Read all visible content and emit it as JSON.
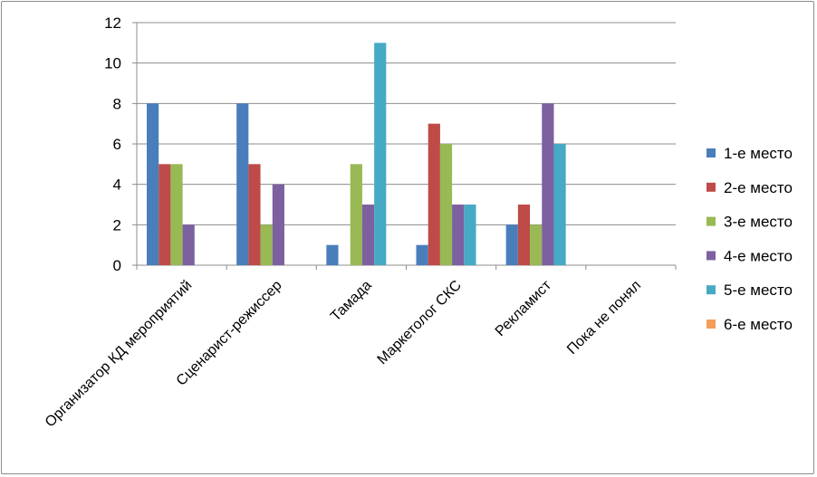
{
  "chart_data": {
    "type": "bar",
    "categories": [
      "Организатор КД мероприятий",
      "Сценарист-режиссер",
      "Тамада",
      "Маркетолог СКС",
      "Рекламист",
      "Пока не понял"
    ],
    "series": [
      {
        "name": "1-е место",
        "color": "#4a7ebb",
        "values": [
          8,
          8,
          1,
          1,
          2,
          0
        ]
      },
      {
        "name": "2-е место",
        "color": "#be4b48",
        "values": [
          5,
          5,
          0,
          7,
          3,
          0
        ]
      },
      {
        "name": "3-е место",
        "color": "#98b954",
        "values": [
          5,
          2,
          5,
          6,
          2,
          0
        ]
      },
      {
        "name": "4-е место",
        "color": "#7d60a0",
        "values": [
          2,
          4,
          3,
          3,
          8,
          0
        ]
      },
      {
        "name": "5-е место",
        "color": "#46aac4",
        "values": [
          0,
          0,
          11,
          3,
          6,
          0
        ]
      },
      {
        "name": "6-е место",
        "color": "#f59d56",
        "values": [
          0,
          0,
          0,
          0,
          0,
          0
        ]
      }
    ],
    "yticks": [
      0,
      2,
      4,
      6,
      8,
      10,
      12
    ],
    "ylim": [
      0,
      12
    ],
    "grid": true,
    "legend_position": "right"
  }
}
